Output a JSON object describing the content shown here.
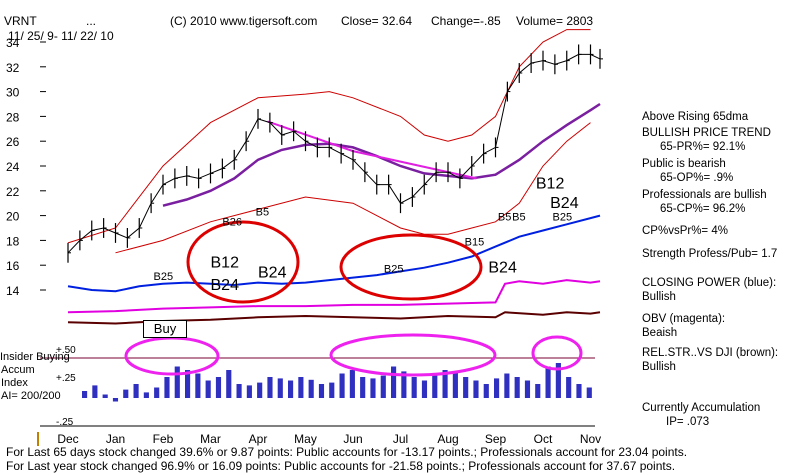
{
  "header": {
    "ticker": "VRNT",
    "dots": "...",
    "copyright": "(C) 2010 www.tigersoft.com",
    "close": "Close=  32.64",
    "change": "Change=-.85",
    "volume": "Volume=  2803",
    "date_range": "11/ 25/ 9- 11/ 22/ 10"
  },
  "side_panel": [
    "Above Rising 65dma",
    "BULLISH PRICE TREND",
    "65-PR%= 92.1%",
    "Public is bearish",
    "65-OP%= .9%",
    "Professionals are bullish",
    "65-CP%= 96.2%",
    "CP%vsPr%=  4%",
    "Strength Profess/Pub= 1.7",
    "CLOSING POWER (blue):",
    "Bullish",
    "OBV (magenta):",
    "Beaish",
    "REL.STR..VS DJI (brown):",
    "Bullish",
    "Currently Accumulation",
    "IP=  .073"
  ],
  "indicator_labels": {
    "insider": "Insider Buying",
    "accum": "Accum",
    "index": "Index",
    "ai": "AI= 200/200",
    "plus50": "+.50",
    "plus25": "+.25",
    "minus25": "-.25"
  },
  "buy_box": "Buy",
  "footer": [
    "For Last 65 days stock changed  39.6% or  9.87 points:  Public accounts for -13.17 points.;  Professionals account for  23.04 points.",
    "For Last year stock changed  96.9% or  16.09 points:  Public accounts for -21.58 points.;  Professionals account for  37.67 points."
  ],
  "signals": [
    {
      "text": "B25",
      "x": 1.8,
      "y": 14.8
    },
    {
      "text": "B12",
      "x": 3.0,
      "y": 15.8
    },
    {
      "text": "B24",
      "x": 3.0,
      "y": 14.0
    },
    {
      "text": "B24",
      "x": 4.0,
      "y": 15.0
    },
    {
      "text": "B26",
      "x": 3.25,
      "y": 19.2
    },
    {
      "text": "B5",
      "x": 3.95,
      "y": 20.0
    },
    {
      "text": "B25",
      "x": 6.65,
      "y": 15.4
    },
    {
      "text": "B24",
      "x": 8.85,
      "y": 15.4
    },
    {
      "text": "B5",
      "x": 9.05,
      "y": 19.6
    },
    {
      "text": "B5",
      "x": 9.35,
      "y": 19.6
    },
    {
      "text": "B25",
      "x": 10.2,
      "y": 19.6
    },
    {
      "text": "B12",
      "x": 9.85,
      "y": 22.2
    },
    {
      "text": "B24",
      "x": 10.15,
      "y": 20.6
    },
    {
      "text": "B15",
      "x": 8.35,
      "y": 17.6
    }
  ],
  "colors": {
    "price_bars": "#000000",
    "bands": "#cc0000",
    "ma65": "#7a1fa0",
    "trendline": "#e020e0",
    "closing_power": "#0020e0",
    "obv": "#e000e0",
    "rel_strength": "#5a0000",
    "accum_bars": "#3030c0",
    "signal_text": "#000000",
    "circle_red": "#dd0000",
    "circle_magenta": "#ee22ee",
    "zero_line": "#7a0030"
  },
  "chart_data": {
    "type": "line",
    "x_tick_labels": [
      "Dec",
      "Jan",
      "Feb",
      "Mar",
      "Apr",
      "May",
      "Jun",
      "Jul",
      "Aug",
      "Sep",
      "Oct",
      "Nov"
    ],
    "y_tick_labels": [
      "34",
      "32",
      "30",
      "28",
      "26",
      "24",
      "22",
      "20",
      "18",
      "16",
      "14"
    ],
    "ylim": [
      13,
      35
    ],
    "xlim": [
      -0.2,
      11.4
    ],
    "price_close": [
      [
        0,
        17.0
      ],
      [
        0.25,
        18.0
      ],
      [
        0.5,
        18.8
      ],
      [
        0.75,
        19.0
      ],
      [
        1,
        18.6
      ],
      [
        1.25,
        18.2
      ],
      [
        1.5,
        19.0
      ],
      [
        1.75,
        21.0
      ],
      [
        2,
        22.5
      ],
      [
        2.25,
        23.0
      ],
      [
        2.5,
        23.2
      ],
      [
        2.75,
        23.0
      ],
      [
        3,
        23.4
      ],
      [
        3.25,
        23.8
      ],
      [
        3.5,
        24.5
      ],
      [
        3.75,
        26.0
      ],
      [
        4,
        27.8
      ],
      [
        4.25,
        27.5
      ],
      [
        4.5,
        26.5
      ],
      [
        4.75,
        26.8
      ],
      [
        5,
        26.0
      ],
      [
        5.25,
        25.5
      ],
      [
        5.5,
        25.5
      ],
      [
        5.75,
        25.0
      ],
      [
        6,
        24.5
      ],
      [
        6.25,
        23.5
      ],
      [
        6.5,
        22.5
      ],
      [
        6.75,
        22.5
      ],
      [
        7,
        21.0
      ],
      [
        7.25,
        21.5
      ],
      [
        7.5,
        22.5
      ],
      [
        7.75,
        23.5
      ],
      [
        8,
        23.5
      ],
      [
        8.25,
        23.0
      ],
      [
        8.5,
        24.0
      ],
      [
        8.75,
        25.0
      ],
      [
        9,
        25.5
      ],
      [
        9.25,
        30.0
      ],
      [
        9.5,
        31.5
      ],
      [
        9.75,
        32.3
      ],
      [
        10,
        32.5
      ],
      [
        10.25,
        32.2
      ],
      [
        10.5,
        32.5
      ],
      [
        10.75,
        33.0
      ],
      [
        11,
        33.0
      ],
      [
        11.2,
        32.64
      ]
    ],
    "ma65": [
      [
        2,
        20.8
      ],
      [
        2.5,
        21.3
      ],
      [
        3,
        22.0
      ],
      [
        3.5,
        23.0
      ],
      [
        4,
        24.5
      ],
      [
        4.5,
        25.3
      ],
      [
        5,
        25.7
      ],
      [
        5.5,
        25.8
      ],
      [
        6,
        25.5
      ],
      [
        6.5,
        24.8
      ],
      [
        7,
        24.0
      ],
      [
        7.5,
        23.4
      ],
      [
        8,
        23.2
      ],
      [
        8.5,
        23.0
      ],
      [
        9,
        23.3
      ],
      [
        9.5,
        24.5
      ],
      [
        10,
        26.0
      ],
      [
        10.5,
        27.3
      ],
      [
        11,
        28.5
      ],
      [
        11.2,
        29.0
      ]
    ],
    "closing_power": [
      [
        0,
        14.3
      ],
      [
        0.5,
        14.0
      ],
      [
        1,
        13.9
      ],
      [
        1.5,
        14.3
      ],
      [
        2,
        14.5
      ],
      [
        2.5,
        14.6
      ],
      [
        3,
        14.5
      ],
      [
        3.5,
        14.4
      ],
      [
        4,
        14.6
      ],
      [
        4.5,
        14.5
      ],
      [
        5,
        14.6
      ],
      [
        5.5,
        14.8
      ],
      [
        6,
        15.0
      ],
      [
        6.5,
        15.2
      ],
      [
        7,
        15.5
      ],
      [
        7.5,
        15.8
      ],
      [
        8,
        16.2
      ],
      [
        8.5,
        16.7
      ],
      [
        9,
        17.5
      ],
      [
        9.5,
        18.3
      ],
      [
        10,
        18.8
      ],
      [
        10.5,
        19.3
      ],
      [
        11,
        19.8
      ],
      [
        11.2,
        20.0
      ]
    ],
    "obv": [
      [
        0,
        12.2
      ],
      [
        1,
        12.3
      ],
      [
        2,
        12.5
      ],
      [
        3,
        12.6
      ],
      [
        4,
        12.7
      ],
      [
        5,
        12.7
      ],
      [
        6,
        12.8
      ],
      [
        7,
        12.8
      ],
      [
        8,
        12.9
      ],
      [
        8.5,
        12.95
      ],
      [
        9,
        13.0
      ],
      [
        9.2,
        14.5
      ],
      [
        9.5,
        14.7
      ],
      [
        10,
        14.5
      ],
      [
        10.5,
        14.8
      ],
      [
        11,
        14.6
      ],
      [
        11.2,
        14.7
      ]
    ],
    "rel_strength": [
      [
        0,
        11.4
      ],
      [
        1,
        11.3
      ],
      [
        2,
        11.5
      ],
      [
        3,
        11.6
      ],
      [
        4,
        11.8
      ],
      [
        5,
        11.9
      ],
      [
        6,
        11.8
      ],
      [
        7,
        11.7
      ],
      [
        8,
        11.9
      ],
      [
        9,
        11.8
      ],
      [
        9.2,
        12.2
      ],
      [
        10,
        12.0
      ],
      [
        10.5,
        12.2
      ],
      [
        11,
        12.1
      ],
      [
        11.2,
        12.2
      ]
    ],
    "upper_band": [
      [
        0,
        17.8
      ],
      [
        1,
        19.0
      ],
      [
        2,
        24.0
      ],
      [
        3,
        27.5
      ],
      [
        4,
        29.5
      ],
      [
        5,
        29.8
      ],
      [
        5.5,
        30.0
      ],
      [
        6,
        29.5
      ],
      [
        7,
        28.0
      ],
      [
        7.5,
        26.5
      ],
      [
        8,
        26.0
      ],
      [
        8.5,
        26.5
      ],
      [
        9,
        28.0
      ],
      [
        9.5,
        32.0
      ],
      [
        10,
        34.0
      ],
      [
        10.5,
        35.0
      ],
      [
        11,
        35.0
      ]
    ],
    "lower_band": [
      [
        1,
        17.0
      ],
      [
        2,
        18.0
      ],
      [
        3,
        19.5
      ],
      [
        4,
        20.5
      ],
      [
        5,
        21.5
      ],
      [
        6,
        21.0
      ],
      [
        7,
        19.0
      ],
      [
        7.5,
        18.5
      ],
      [
        8,
        18.5
      ],
      [
        8.5,
        19.0
      ],
      [
        9,
        19.5
      ],
      [
        9.5,
        21.0
      ],
      [
        10,
        24.0
      ],
      [
        10.5,
        26.0
      ],
      [
        11,
        27.5
      ]
    ],
    "accumulation_index": [
      0.1,
      0.18,
      0.05,
      -0.05,
      0.12,
      0.2,
      0.08,
      0.15,
      0.3,
      0.45,
      0.4,
      0.35,
      0.25,
      0.3,
      0.4,
      0.2,
      0.18,
      0.22,
      0.3,
      0.28,
      0.25,
      0.3,
      0.26,
      0.2,
      0.22,
      0.35,
      0.4,
      0.3,
      0.28,
      0.32,
      0.45,
      0.38,
      0.3,
      0.25,
      0.34,
      0.4,
      0.36,
      0.3,
      0.25,
      0.2,
      0.28,
      0.35,
      0.3,
      0.25,
      0.2,
      0.45,
      0.5,
      0.3,
      0.2,
      0.15
    ]
  }
}
